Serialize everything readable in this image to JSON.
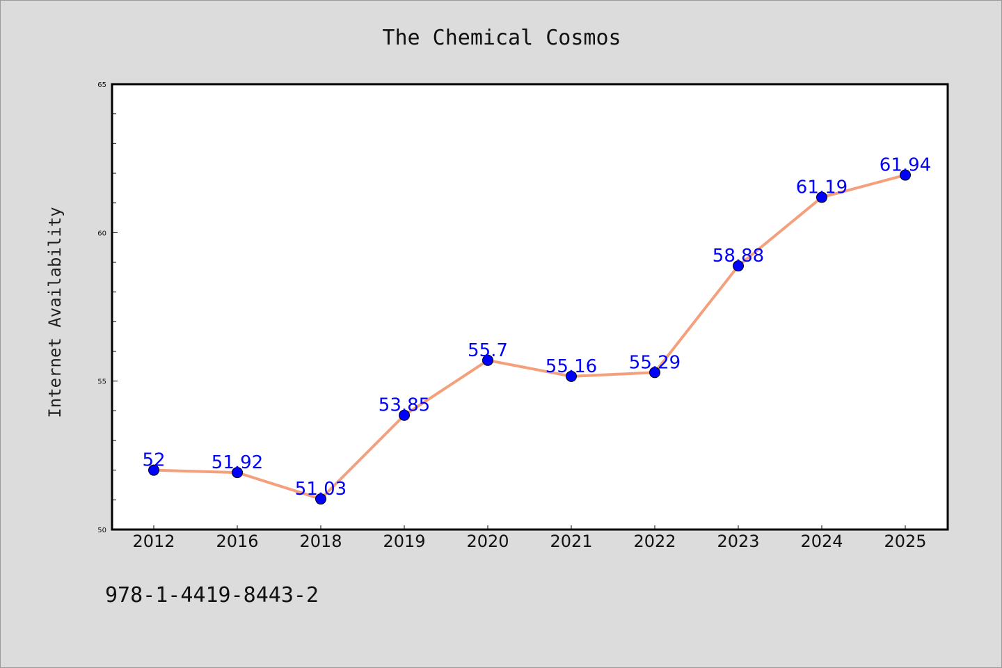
{
  "chart_data": {
    "type": "line",
    "title": "The Chemical Cosmos",
    "xlabel": "",
    "ylabel": "Internet Availability",
    "categories": [
      "2012",
      "2016",
      "2018",
      "2019",
      "2020",
      "2021",
      "2022",
      "2023",
      "2024",
      "2025"
    ],
    "series": [
      {
        "values": [
          52,
          51.92,
          51.03,
          53.85,
          55.7,
          55.16,
          55.29,
          58.88,
          61.19,
          61.94
        ],
        "labels": [
          "52",
          "51.92",
          "51.03",
          "53.85",
          "55.7",
          "55.16",
          "55.29",
          "58.88",
          "61.19",
          "61.94"
        ],
        "line_color": "#f4a07c",
        "marker_color": "#0000ff",
        "label_color": "#0000ff"
      }
    ],
    "ylim": [
      50,
      65
    ],
    "yticks": [
      "50",
      "55",
      "60",
      "65"
    ],
    "grid": false
  },
  "footer": {
    "isbn": "978-1-4419-8443-2"
  },
  "colors": {
    "background": "#dcdcdc",
    "plot_background": "#ffffff"
  }
}
